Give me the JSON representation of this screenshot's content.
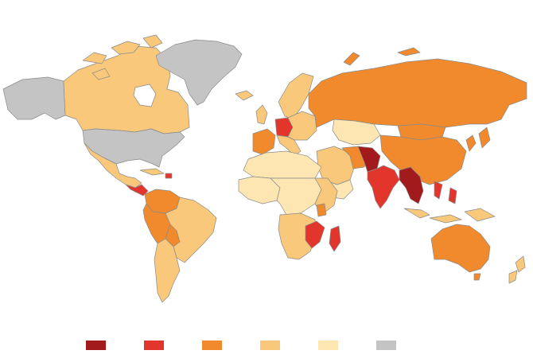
{
  "map": {
    "title": "",
    "legend": {
      "placement": "bottom-center",
      "items": [
        {
          "color": "#a31a1c",
          "label": ""
        },
        {
          "color": "#e2352b",
          "label": ""
        },
        {
          "color": "#f08a2c",
          "label": ""
        },
        {
          "color": "#f9c87a",
          "label": ""
        },
        {
          "color": "#fde6b2",
          "label": ""
        },
        {
          "color": "#c4c4c4",
          "label": ""
        }
      ]
    },
    "colors": {
      "darkred": "#a31a1c",
      "red": "#e2352b",
      "orange": "#f08a2c",
      "lightorange": "#f9c87a",
      "cream": "#fde6b2",
      "gray": "#c4c4c4",
      "border": "#8a8a8a",
      "water": "#ffffff"
    }
  }
}
